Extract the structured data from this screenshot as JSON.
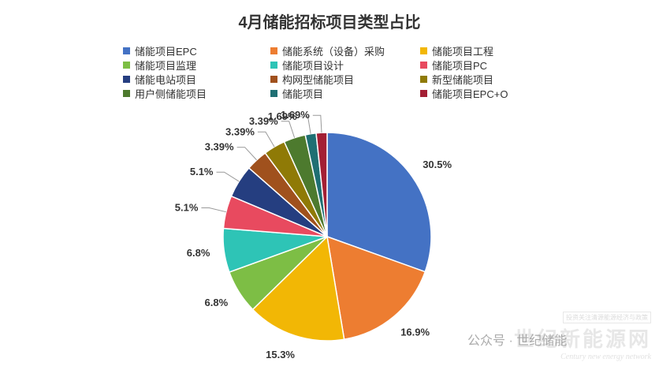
{
  "chart_data": {
    "type": "pie",
    "title": "4月储能招标项目类型占比",
    "start_angle_deg": 90,
    "direction": "clockwise",
    "slices": [
      {
        "label": "储能项目EPC",
        "value": 30.5,
        "display": "30.5%",
        "color": "#4472C4"
      },
      {
        "label": "储能系统（设备）采购",
        "value": 16.9,
        "display": "16.9%",
        "color": "#ED7D31"
      },
      {
        "label": "储能项目工程",
        "value": 15.3,
        "display": "15.3%",
        "color": "#F2B705"
      },
      {
        "label": "储能项目监理",
        "value": 6.8,
        "display": "6.8%",
        "color": "#7DBE45"
      },
      {
        "label": "储能项目设计",
        "value": 6.8,
        "display": "6.8%",
        "color": "#2EC4B6"
      },
      {
        "label": "储能项目PC",
        "value": 5.1,
        "display": "5.1%",
        "color": "#E84A5F"
      },
      {
        "label": "储能电站项目",
        "value": 5.1,
        "display": "5.1%",
        "color": "#253E80"
      },
      {
        "label": "构网型储能项目",
        "value": 3.39,
        "display": "3.39%",
        "color": "#A0511D"
      },
      {
        "label": "新型储能项目",
        "value": 3.39,
        "display": "3.39%",
        "color": "#8F7A06"
      },
      {
        "label": "用户侧储能项目",
        "value": 3.39,
        "display": "3.39%",
        "color": "#4D7A2E"
      },
      {
        "label": "储能项目",
        "value": 1.69,
        "display": "1.69%",
        "color": "#1F6F73"
      },
      {
        "label": "储能项目EPC+O",
        "value": 1.69,
        "display": "1.69%",
        "color": "#A31F34"
      }
    ],
    "legend_position": "top"
  },
  "watermark": {
    "caption": "投资关注清源能源经济与政策",
    "brand_cn": "世纪新能源网",
    "brand_en": "Century new energy network",
    "wechat": "公众号 · 世纪储能"
  }
}
